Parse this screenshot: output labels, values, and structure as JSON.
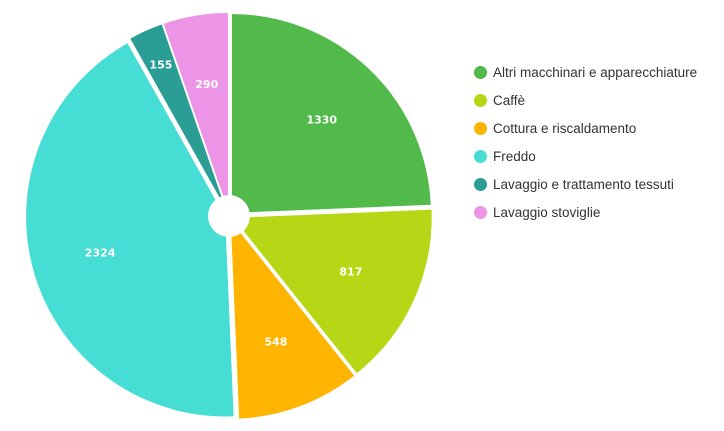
{
  "chart_data": {
    "type": "pie",
    "donut_hole": true,
    "legend_position": "right",
    "slices": [
      {
        "label": "Altri macchinari e apparecchiature",
        "value": 1330,
        "color": "#52BA4A"
      },
      {
        "label": "Caffè",
        "value": 817,
        "color": "#B7D615"
      },
      {
        "label": "Cottura e riscaldamento",
        "value": 548,
        "color": "#FFB400"
      },
      {
        "label": "Freddo",
        "value": 2324,
        "color": "#45DDD4"
      },
      {
        "label": "Lavaggio e trattamento tessuti",
        "value": 155,
        "color": "#2A9D94"
      },
      {
        "label": "Lavaggio stoviglie",
        "value": 290,
        "color": "#EC94E6"
      }
    ]
  }
}
